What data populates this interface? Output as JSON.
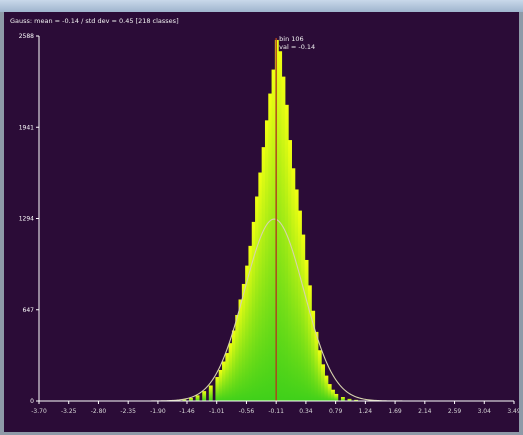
{
  "chart_data": {
    "type": "bar",
    "title": "Gauss: mean = -0.14 / std dev = 0.45 [218 classes]",
    "xlabel": "",
    "ylabel": "",
    "x_tick_labels": [
      "-3.70",
      "-3.25",
      "-2.80",
      "-2.35",
      "-1.90",
      "-1.46",
      "-1.01",
      "-0.56",
      "-0.11",
      "0.34",
      "0.79",
      "1.24",
      "1.69",
      "2.14",
      "2.59",
      "3.04",
      "3.49"
    ],
    "y_tick_labels": [
      "2588",
      "1941",
      "1294",
      "647",
      "0"
    ],
    "xlim": [
      -3.7,
      3.49
    ],
    "ylim": [
      0,
      2588
    ],
    "marker": {
      "x": -0.11,
      "label_line1": "bin 106",
      "label_line2": "val = -0.14"
    },
    "gaussian": {
      "mean": -0.14,
      "std": 0.45,
      "peak": 1290
    },
    "colors": {
      "background": "#2b0c37",
      "bar_low": "#3fd01a",
      "bar_high": "#f0ff12",
      "curve": "#d6d3ad",
      "marker": "#b0401c"
    },
    "bins": [
      {
        "x": -1.6,
        "y": 5
      },
      {
        "x": -1.5,
        "y": 10
      },
      {
        "x": -1.4,
        "y": 22
      },
      {
        "x": -1.3,
        "y": 40
      },
      {
        "x": -1.2,
        "y": 70
      },
      {
        "x": -1.1,
        "y": 110
      },
      {
        "x": -1.0,
        "y": 170
      },
      {
        "x": -0.95,
        "y": 220
      },
      {
        "x": -0.9,
        "y": 280
      },
      {
        "x": -0.85,
        "y": 340
      },
      {
        "x": -0.8,
        "y": 410
      },
      {
        "x": -0.75,
        "y": 500
      },
      {
        "x": -0.7,
        "y": 610
      },
      {
        "x": -0.65,
        "y": 720
      },
      {
        "x": -0.6,
        "y": 830
      },
      {
        "x": -0.55,
        "y": 960
      },
      {
        "x": -0.5,
        "y": 1100
      },
      {
        "x": -0.45,
        "y": 1270
      },
      {
        "x": -0.4,
        "y": 1450
      },
      {
        "x": -0.35,
        "y": 1620
      },
      {
        "x": -0.3,
        "y": 1800
      },
      {
        "x": -0.25,
        "y": 1990
      },
      {
        "x": -0.2,
        "y": 2180
      },
      {
        "x": -0.15,
        "y": 2350
      },
      {
        "x": -0.1,
        "y": 2560
      },
      {
        "x": -0.05,
        "y": 2480
      },
      {
        "x": 0.0,
        "y": 2300
      },
      {
        "x": 0.05,
        "y": 2100
      },
      {
        "x": 0.1,
        "y": 1850
      },
      {
        "x": 0.15,
        "y": 1650
      },
      {
        "x": 0.2,
        "y": 1500
      },
      {
        "x": 0.25,
        "y": 1350
      },
      {
        "x": 0.3,
        "y": 1180
      },
      {
        "x": 0.35,
        "y": 1000
      },
      {
        "x": 0.4,
        "y": 820
      },
      {
        "x": 0.45,
        "y": 640
      },
      {
        "x": 0.5,
        "y": 490
      },
      {
        "x": 0.55,
        "y": 360
      },
      {
        "x": 0.6,
        "y": 260
      },
      {
        "x": 0.65,
        "y": 180
      },
      {
        "x": 0.7,
        "y": 120
      },
      {
        "x": 0.75,
        "y": 80
      },
      {
        "x": 0.8,
        "y": 50
      },
      {
        "x": 0.9,
        "y": 28
      },
      {
        "x": 1.0,
        "y": 15
      },
      {
        "x": 1.1,
        "y": 8
      }
    ]
  }
}
